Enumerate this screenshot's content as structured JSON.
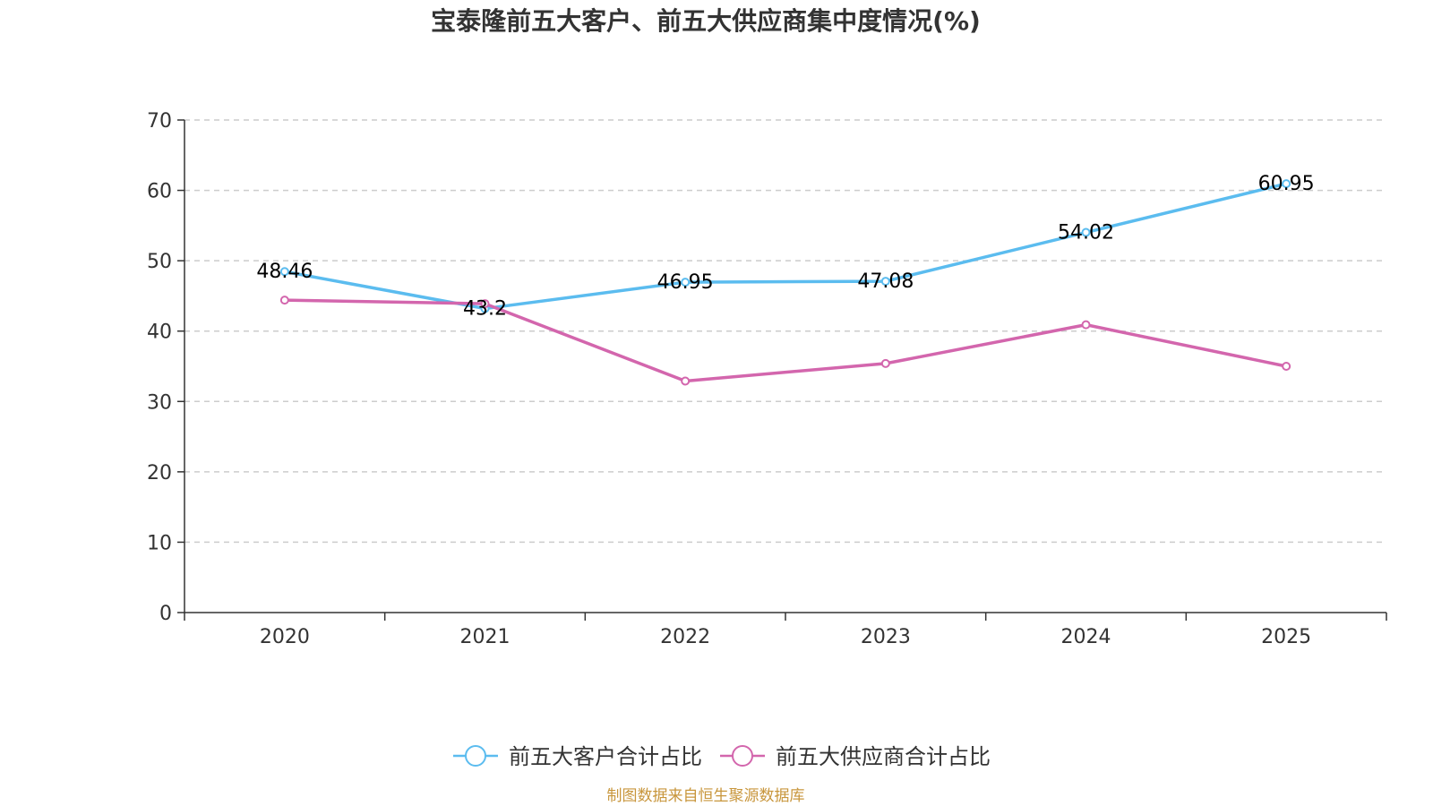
{
  "chart_data": {
    "type": "line",
    "title": "宝泰隆前五大客户、前五大供应商集中度情况(%)",
    "categories": [
      "2020",
      "2021",
      "2022",
      "2023",
      "2024",
      "2025"
    ],
    "ylim": [
      0,
      70
    ],
    "yticks": [
      "0",
      "10",
      "20",
      "30",
      "40",
      "50",
      "60",
      "70"
    ],
    "series": [
      {
        "name": "前五大客户合计占比",
        "color": "#5bbcef",
        "values": [
          48.46,
          43.2,
          46.95,
          47.08,
          54.02,
          60.95
        ],
        "labels": [
          "48.46",
          "43.2",
          "46.95",
          "47.08",
          "54.02",
          "60.95"
        ]
      },
      {
        "name": "前五大供应商合计占比",
        "color": "#d366ad",
        "values": [
          44.4,
          43.9,
          32.9,
          35.4,
          40.9,
          35.0
        ],
        "labels": []
      }
    ],
    "grid": true,
    "legend": "bottom-center",
    "source": "制图数据来自恒生聚源数据库"
  }
}
